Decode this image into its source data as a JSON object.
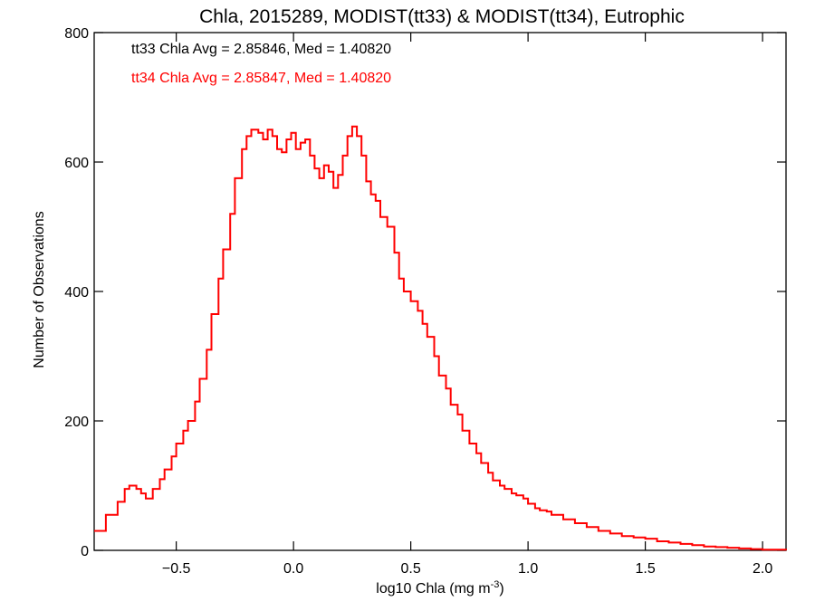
{
  "chart_data": {
    "type": "line",
    "title": "Chla, 2015289, MODIST(tt33) & MODIST(tt34), Eutrophic",
    "xlabel_main": "log10 Chla (mg m",
    "xlabel_sup": "-3",
    "xlabel_close": ")",
    "ylabel": "Number of Observations",
    "xlim": [
      -0.85,
      2.1
    ],
    "ylim": [
      0,
      800
    ],
    "xticks": [
      -0.5,
      0.0,
      0.5,
      1.0,
      1.5,
      2.0
    ],
    "xtick_labels": [
      "−0.5",
      "0.0",
      "0.5",
      "1.0",
      "1.5",
      "2.0"
    ],
    "yticks": [
      0,
      200,
      400,
      600,
      800
    ],
    "ytick_labels": [
      "0",
      "200",
      "400",
      "600",
      "800"
    ],
    "grid": false,
    "annotations": [
      {
        "text": "tt33 Chla Avg = 2.85846, Med = 1.40820",
        "color": "#000000"
      },
      {
        "text": "tt34 Chla Avg = 2.85847, Med = 1.40820",
        "color": "#ff0000"
      }
    ],
    "series": [
      {
        "color": "#ff0000",
        "x": [
          -0.85,
          -0.8,
          -0.75,
          -0.72,
          -0.7,
          -0.67,
          -0.65,
          -0.63,
          -0.6,
          -0.57,
          -0.55,
          -0.52,
          -0.5,
          -0.47,
          -0.45,
          -0.42,
          -0.4,
          -0.37,
          -0.35,
          -0.32,
          -0.3,
          -0.27,
          -0.25,
          -0.22,
          -0.2,
          -0.18,
          -0.15,
          -0.13,
          -0.11,
          -0.09,
          -0.07,
          -0.05,
          -0.03,
          -0.01,
          0.01,
          0.03,
          0.05,
          0.07,
          0.09,
          0.11,
          0.13,
          0.15,
          0.17,
          0.19,
          0.21,
          0.23,
          0.25,
          0.27,
          0.29,
          0.31,
          0.33,
          0.35,
          0.37,
          0.4,
          0.43,
          0.45,
          0.47,
          0.5,
          0.53,
          0.55,
          0.57,
          0.6,
          0.62,
          0.65,
          0.67,
          0.7,
          0.72,
          0.75,
          0.78,
          0.8,
          0.83,
          0.85,
          0.88,
          0.9,
          0.93,
          0.95,
          0.98,
          1.0,
          1.03,
          1.05,
          1.08,
          1.1,
          1.15,
          1.2,
          1.25,
          1.3,
          1.35,
          1.4,
          1.45,
          1.5,
          1.55,
          1.6,
          1.65,
          1.7,
          1.75,
          1.8,
          1.85,
          1.9,
          1.95,
          2.0,
          2.05,
          2.1
        ],
        "y": [
          30,
          55,
          75,
          95,
          100,
          95,
          88,
          80,
          95,
          110,
          125,
          145,
          165,
          185,
          200,
          230,
          265,
          310,
          365,
          420,
          465,
          520,
          575,
          620,
          640,
          650,
          645,
          635,
          650,
          640,
          620,
          615,
          635,
          645,
          620,
          630,
          635,
          610,
          590,
          575,
          595,
          585,
          560,
          580,
          610,
          640,
          655,
          640,
          610,
          570,
          550,
          540,
          515,
          500,
          460,
          420,
          400,
          385,
          370,
          350,
          330,
          300,
          270,
          250,
          225,
          210,
          185,
          165,
          150,
          135,
          120,
          108,
          100,
          95,
          88,
          85,
          80,
          72,
          65,
          62,
          60,
          55,
          48,
          42,
          36,
          30,
          26,
          22,
          20,
          18,
          14,
          12,
          10,
          8,
          6,
          5,
          4,
          3,
          2,
          1,
          1,
          0
        ]
      }
    ]
  }
}
